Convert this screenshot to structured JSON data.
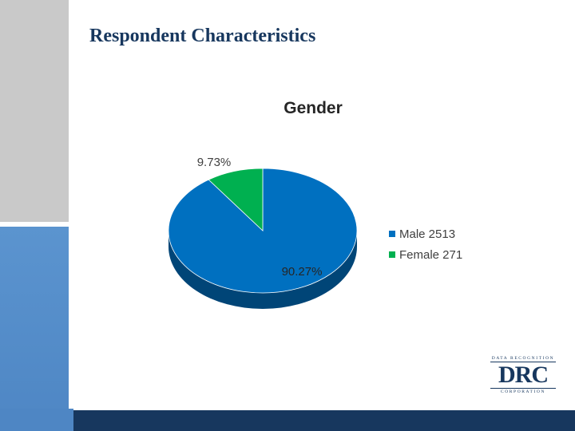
{
  "slide": {
    "title": "Respondent Characteristics"
  },
  "logo": {
    "top_text": "DATA RECOGNITION",
    "mark": "DRC",
    "bottom_text": "CORPORATION"
  },
  "colors": {
    "male": "#0070c0",
    "female": "#00b050",
    "title": "#17375e",
    "side_gray": "#c9c9c9",
    "side_blue": "#4e86c4",
    "bar_navy": "#17375e"
  },
  "chart_data": {
    "type": "pie",
    "title": "Gender",
    "style": "3d",
    "slices": [
      {
        "label": "Male 2513",
        "value": 2513,
        "percent_label": "90.27%",
        "color": "#0070c0"
      },
      {
        "label": "Female 271",
        "value": 271,
        "percent_label": "9.73%",
        "color": "#00b050"
      }
    ],
    "legend": "right"
  }
}
